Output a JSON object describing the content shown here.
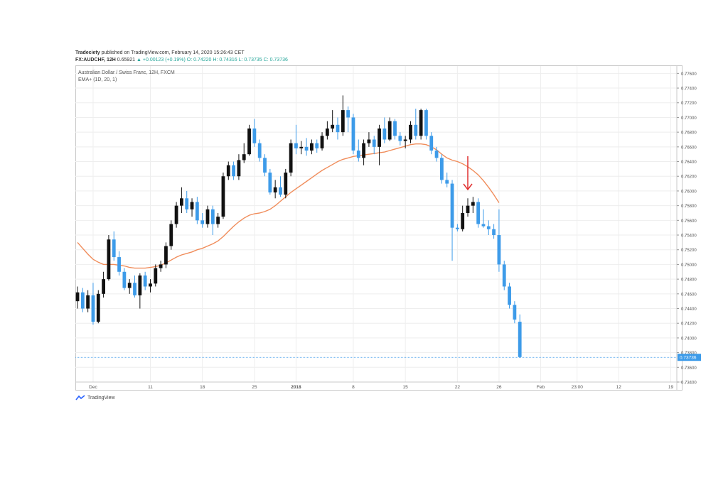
{
  "header": {
    "publisher": "Tradeciety",
    "published_text": "published on TradingView.com, February 14, 2020 15:26:43 CET",
    "symbol_line": "FX:AUDCHF, 12H",
    "price": "0.65921",
    "change": "▲ +0.00123 (+0.19%)",
    "ohlc_o": "O: 0.74220",
    "ohlc_h": "H: 0.74316",
    "ohlc_l": "L: 0.73735",
    "ohlc_c": "C: 0.73736"
  },
  "legend": {
    "instrument": "Australian Dollar / Swiss Franc, 12H, FXCM",
    "indicator": "EMA+ (1D, 20, 1)"
  },
  "footer": {
    "brand": "TradingView"
  },
  "colors": {
    "bull": "#111111",
    "bear": "#3d9be9",
    "ema": "#f08c5a",
    "arrow": "#e03030",
    "price_line": "#3d9be9",
    "grid": "#eeeeee"
  },
  "chart_data": {
    "type": "candlestick",
    "symbol": "AUDCHF",
    "timeframe": "12H",
    "ylim": [
      0.734,
      0.777
    ],
    "y_ticks": [
      "0.77600",
      "0.77400",
      "0.77200",
      "0.77000",
      "0.76800",
      "0.76600",
      "0.76400",
      "0.76200",
      "0.76000",
      "0.75800",
      "0.75600",
      "0.75400",
      "0.75200",
      "0.75000",
      "0.74800",
      "0.74600",
      "0.74400",
      "0.74200",
      "0.74000",
      "0.73800",
      "0.73600",
      "0.73400"
    ],
    "x_ticks": [
      {
        "label": "Dec",
        "index": 3
      },
      {
        "label": "11",
        "index": 14
      },
      {
        "label": "18",
        "index": 24
      },
      {
        "label": "25",
        "index": 34
      },
      {
        "label": "2018",
        "index": 42
      },
      {
        "label": "8",
        "index": 53
      },
      {
        "label": "15",
        "index": 63
      },
      {
        "label": "22",
        "index": 73
      },
      {
        "label": "26",
        "index": 81
      },
      {
        "label": "Feb",
        "index": 89
      },
      {
        "label": "23:00",
        "index": 96
      },
      {
        "label": "12",
        "index": 104
      },
      {
        "label": "19",
        "index": 114
      }
    ],
    "last_price_label": "0.73736",
    "last_price": 0.73736,
    "candles": [
      [
        0.745,
        0.747,
        0.744,
        0.7462
      ],
      [
        0.7462,
        0.7468,
        0.7435,
        0.744
      ],
      [
        0.744,
        0.7465,
        0.7435,
        0.7458
      ],
      [
        0.7458,
        0.7475,
        0.7418,
        0.7422
      ],
      [
        0.7422,
        0.7465,
        0.742,
        0.746
      ],
      [
        0.746,
        0.749,
        0.7455,
        0.748
      ],
      [
        0.748,
        0.754,
        0.7478,
        0.7534
      ],
      [
        0.7534,
        0.7545,
        0.7505,
        0.751
      ],
      [
        0.751,
        0.7518,
        0.7485,
        0.749
      ],
      [
        0.749,
        0.7495,
        0.7465,
        0.7468
      ],
      [
        0.7468,
        0.748,
        0.746,
        0.7475
      ],
      [
        0.7475,
        0.7485,
        0.7455,
        0.7458
      ],
      [
        0.7458,
        0.7488,
        0.744,
        0.7485
      ],
      [
        0.7485,
        0.749,
        0.7465,
        0.747
      ],
      [
        0.747,
        0.748,
        0.7462,
        0.7474
      ],
      [
        0.7474,
        0.75,
        0.747,
        0.7495
      ],
      [
        0.7495,
        0.7505,
        0.749,
        0.75
      ],
      [
        0.75,
        0.753,
        0.7495,
        0.7525
      ],
      [
        0.7525,
        0.756,
        0.752,
        0.7555
      ],
      [
        0.7555,
        0.7585,
        0.755,
        0.758
      ],
      [
        0.758,
        0.7605,
        0.757,
        0.759
      ],
      [
        0.759,
        0.76,
        0.757,
        0.7575
      ],
      [
        0.7575,
        0.759,
        0.7565,
        0.7585
      ],
      [
        0.7585,
        0.7592,
        0.7555,
        0.756
      ],
      [
        0.756,
        0.757,
        0.755,
        0.7555
      ],
      [
        0.7555,
        0.758,
        0.755,
        0.7575
      ],
      [
        0.7575,
        0.758,
        0.754,
        0.7555
      ],
      [
        0.7555,
        0.757,
        0.755,
        0.7565
      ],
      [
        0.7565,
        0.7625,
        0.7562,
        0.762
      ],
      [
        0.762,
        0.764,
        0.7615,
        0.7635
      ],
      [
        0.7635,
        0.764,
        0.7615,
        0.762
      ],
      [
        0.762,
        0.765,
        0.7615,
        0.7642
      ],
      [
        0.7642,
        0.7665,
        0.7638,
        0.765
      ],
      [
        0.765,
        0.769,
        0.7648,
        0.7685
      ],
      [
        0.7685,
        0.7698,
        0.766,
        0.7665
      ],
      [
        0.7665,
        0.767,
        0.764,
        0.7645
      ],
      [
        0.7645,
        0.765,
        0.762,
        0.7625
      ],
      [
        0.7625,
        0.763,
        0.7595,
        0.7598
      ],
      [
        0.7598,
        0.7615,
        0.759,
        0.7605
      ],
      [
        0.7605,
        0.762,
        0.7592,
        0.7595
      ],
      [
        0.7595,
        0.763,
        0.759,
        0.7625
      ],
      [
        0.7625,
        0.767,
        0.762,
        0.7665
      ],
      [
        0.7665,
        0.769,
        0.765,
        0.7658
      ],
      [
        0.7658,
        0.7668,
        0.765,
        0.766
      ],
      [
        0.766,
        0.7672,
        0.7648,
        0.7655
      ],
      [
        0.7655,
        0.767,
        0.765,
        0.7665
      ],
      [
        0.7665,
        0.767,
        0.7652,
        0.7658
      ],
      [
        0.7658,
        0.768,
        0.7655,
        0.7675
      ],
      [
        0.7675,
        0.7695,
        0.767,
        0.7685
      ],
      [
        0.7685,
        0.771,
        0.768,
        0.769
      ],
      [
        0.769,
        0.77,
        0.767,
        0.768
      ],
      [
        0.768,
        0.773,
        0.7675,
        0.771
      ],
      [
        0.771,
        0.7715,
        0.768,
        0.77
      ],
      [
        0.77,
        0.7705,
        0.765,
        0.7655
      ],
      [
        0.7655,
        0.767,
        0.764,
        0.7645
      ],
      [
        0.7645,
        0.767,
        0.7635,
        0.7665
      ],
      [
        0.7665,
        0.768,
        0.766,
        0.767
      ],
      [
        0.767,
        0.7675,
        0.765,
        0.766
      ],
      [
        0.766,
        0.769,
        0.7635,
        0.7685
      ],
      [
        0.7685,
        0.77,
        0.7665,
        0.767
      ],
      [
        0.767,
        0.77,
        0.7668,
        0.7695
      ],
      [
        0.7695,
        0.7698,
        0.767,
        0.7675
      ],
      [
        0.7675,
        0.768,
        0.7662,
        0.7668
      ],
      [
        0.7668,
        0.7675,
        0.7658,
        0.767
      ],
      [
        0.767,
        0.7695,
        0.7665,
        0.769
      ],
      [
        0.769,
        0.7712,
        0.767,
        0.7675
      ],
      [
        0.7675,
        0.7712,
        0.767,
        0.771
      ],
      [
        0.771,
        0.7712,
        0.767,
        0.7675
      ],
      [
        0.7675,
        0.768,
        0.765,
        0.7655
      ],
      [
        0.7655,
        0.766,
        0.764,
        0.7645
      ],
      [
        0.7645,
        0.765,
        0.761,
        0.7615
      ],
      [
        0.7615,
        0.7625,
        0.7605,
        0.761
      ],
      [
        0.761,
        0.7615,
        0.7505,
        0.755
      ],
      [
        0.755,
        0.7555,
        0.7545,
        0.7548
      ],
      [
        0.7548,
        0.758,
        0.7545,
        0.757
      ],
      [
        0.757,
        0.759,
        0.7565,
        0.758
      ],
      [
        0.758,
        0.7592,
        0.757,
        0.7585
      ],
      [
        0.7585,
        0.759,
        0.755,
        0.7555
      ],
      [
        0.7555,
        0.7575,
        0.755,
        0.7552
      ],
      [
        0.7552,
        0.756,
        0.754,
        0.7548
      ],
      [
        0.7548,
        0.7555,
        0.7535,
        0.754
      ],
      [
        0.754,
        0.7575,
        0.749,
        0.75
      ],
      [
        0.75,
        0.7505,
        0.7465,
        0.747
      ],
      [
        0.747,
        0.7475,
        0.744,
        0.7445
      ],
      [
        0.7445,
        0.745,
        0.742,
        0.7425
      ],
      [
        0.7422,
        0.7432,
        0.7373,
        0.7374
      ]
    ],
    "ema": [
      0.753,
      0.7522,
      0.7514,
      0.7507,
      0.7503,
      0.75,
      0.75,
      0.75,
      0.7499,
      0.7498,
      0.7496,
      0.7495,
      0.7495,
      0.7495,
      0.7496,
      0.7497,
      0.7499,
      0.7502,
      0.7506,
      0.751,
      0.7513,
      0.7515,
      0.7517,
      0.752,
      0.7522,
      0.7525,
      0.7528,
      0.7532,
      0.7538,
      0.7545,
      0.7552,
      0.7558,
      0.7563,
      0.7567,
      0.7569,
      0.757,
      0.7572,
      0.7575,
      0.758,
      0.7586,
      0.7592,
      0.7598,
      0.7603,
      0.7608,
      0.7613,
      0.7618,
      0.7623,
      0.7628,
      0.7632,
      0.7636,
      0.764,
      0.7643,
      0.7645,
      0.7647,
      0.7648,
      0.7649,
      0.765,
      0.7651,
      0.7652,
      0.7653,
      0.7655,
      0.7657,
      0.7659,
      0.7661,
      0.7663,
      0.7664,
      0.7664,
      0.7663,
      0.766,
      0.7656,
      0.765,
      0.7645,
      0.7642,
      0.764,
      0.7637,
      0.7633,
      0.7628,
      0.7622,
      0.7614,
      0.7605,
      0.7595,
      0.7584
    ],
    "annotations": [
      {
        "type": "arrow-down",
        "color": "#e03030",
        "at_index": 75
      }
    ]
  }
}
